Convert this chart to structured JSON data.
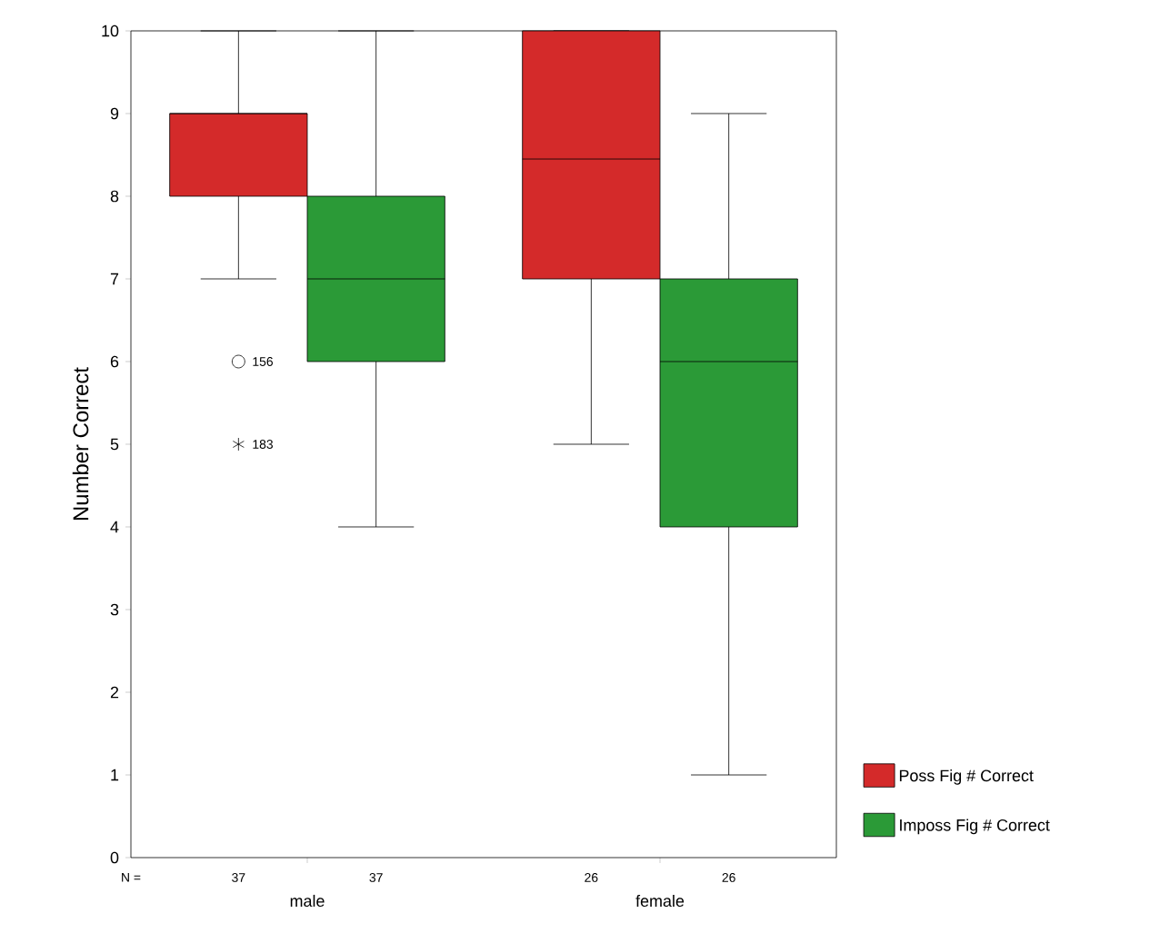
{
  "chart_data": {
    "type": "box",
    "ylabel": "Number Correct",
    "categories": [
      "male",
      "female"
    ],
    "series": [
      {
        "name": "Poss Fig # Correct",
        "color": "#d42a2a",
        "boxes": [
          {
            "low": 7,
            "q1": 8,
            "median": 9,
            "q3": 9,
            "high": 10,
            "outliers": [
              6,
              5
            ]
          },
          {
            "low": 5,
            "q1": 7,
            "median": 8.45,
            "q3": 10,
            "high": 10
          }
        ]
      },
      {
        "name": "Imposs Fig # Correct",
        "color": "#2b9a37",
        "boxes": [
          {
            "low": 4,
            "q1": 6,
            "median": 7,
            "q3": 8,
            "high": 10
          },
          {
            "low": 1,
            "q1": 4,
            "median": 6,
            "q3": 7,
            "high": 9
          }
        ]
      }
    ],
    "ylim": [
      0,
      10
    ],
    "yticks": [
      0,
      1,
      2,
      3,
      4,
      5,
      6,
      7,
      8,
      9,
      10
    ],
    "annotations": [
      "N =",
      "37",
      "37",
      "26",
      "26",
      "156",
      "183"
    ],
    "legend": "bottom right"
  }
}
